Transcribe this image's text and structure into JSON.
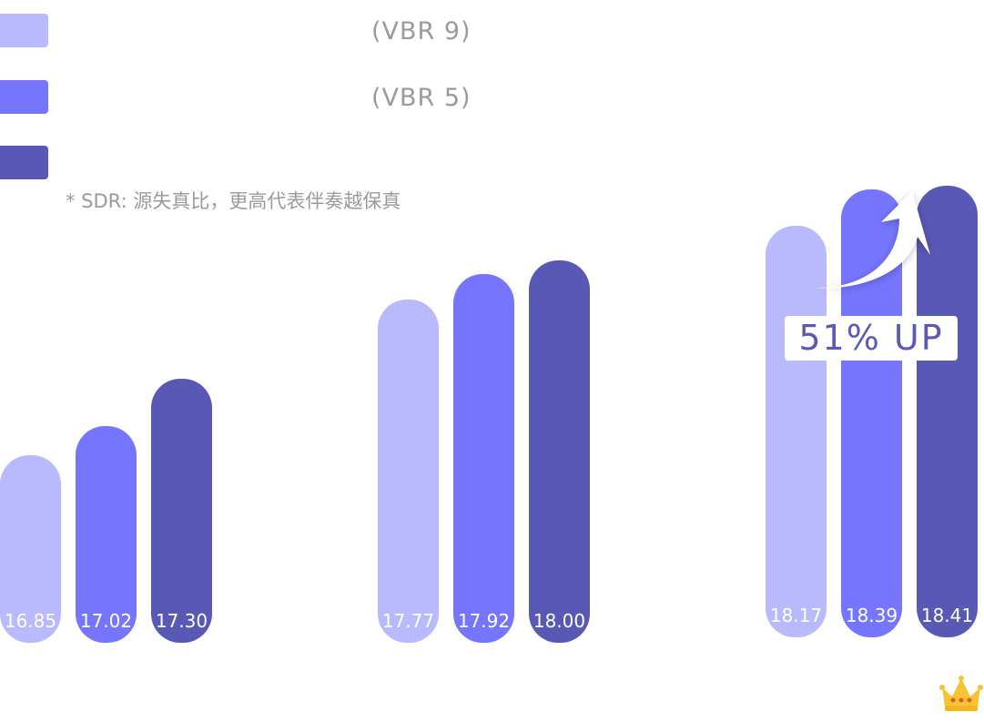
{
  "legend": [
    {
      "label": "(VBR 9)",
      "color": "#b9b9fd"
    },
    {
      "label": "(VBR 5)",
      "color": "#7575fe"
    },
    {
      "label": "",
      "color": "#5858b5"
    }
  ],
  "footnote": "* SDR: 源失真比，更高代表伴奏越保真",
  "badge": {
    "text": "51% UP",
    "arrow_icon": "curved-arrow-up-icon",
    "crown_icon": "crown-icon"
  },
  "chart_data": {
    "type": "bar",
    "categories": [
      "",
      "",
      ""
    ],
    "series": [
      {
        "name": "(VBR 9)",
        "color": "#b9b9fd",
        "values": [
          16.85,
          17.77,
          18.17
        ],
        "labels": [
          "16.85",
          "17.77",
          "18.17"
        ]
      },
      {
        "name": "(VBR 5)",
        "color": "#7575fe",
        "values": [
          17.02,
          17.92,
          18.39
        ],
        "labels": [
          "17.02",
          "17.92",
          "18.39"
        ]
      },
      {
        "name": "",
        "color": "#5858b5",
        "values": [
          17.3,
          18.0,
          18.41
        ],
        "labels": [
          "17.30",
          "18.00",
          "18.41"
        ]
      }
    ],
    "title": "",
    "xlabel": "",
    "ylabel": "",
    "grid": false,
    "legend_position": "top-left"
  }
}
